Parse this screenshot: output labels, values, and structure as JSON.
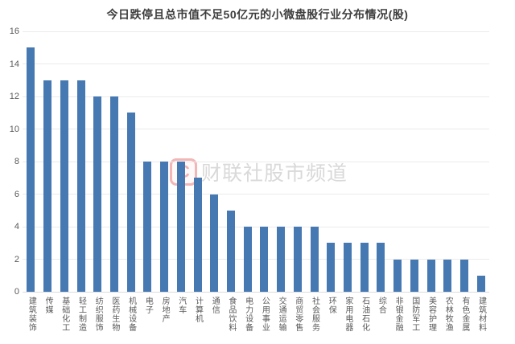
{
  "title": "今日跌停且总市值不足50亿元的小微盘股行业分布情况(股)",
  "watermark": {
    "logo_text": "C",
    "text": "财联社股市频道"
  },
  "chart_data": {
    "type": "bar",
    "title": "今日跌停且总市值不足50亿元的小微盘股行业分布情况(股)",
    "categories": [
      "建筑装饰",
      "传媒",
      "基础化工",
      "轻工制造",
      "纺织服饰",
      "医药生物",
      "机械设备",
      "电子",
      "房地产",
      "汽车",
      "计算机",
      "通信",
      "食品饮料",
      "电力设备",
      "公用事业",
      "交通运输",
      "商贸零售",
      "社会服务",
      "环保",
      "家用电器",
      "石油石化",
      "综合",
      "非银金融",
      "国防军工",
      "美容护理",
      "农林牧渔",
      "有色金属",
      "建筑材料"
    ],
    "values": [
      15,
      13,
      13,
      13,
      12,
      12,
      11,
      8,
      8,
      8,
      7,
      6,
      5,
      4,
      4,
      4,
      4,
      4,
      3,
      3,
      3,
      3,
      2,
      2,
      2,
      2,
      2,
      1
    ],
    "xlabel": "",
    "ylabel": "",
    "ylim": [
      0,
      16
    ],
    "yticks": [
      0,
      2,
      4,
      6,
      8,
      10,
      12,
      14,
      16
    ],
    "grid": true,
    "legend": false,
    "bar_color": "#4678b2",
    "gridline_color": "#ebebeb",
    "axis_label_color": "#595959",
    "title_color": "#3d3d3d"
  }
}
